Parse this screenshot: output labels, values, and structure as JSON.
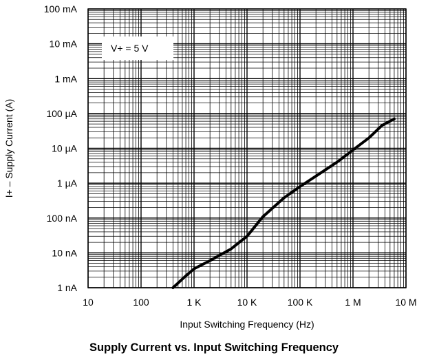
{
  "chart_data": {
    "type": "line",
    "title": "Supply Current vs. Input Switching Frequency",
    "xlabel": "Input Switching Frequency (Hz)",
    "ylabel": "I+ – Supply Current (A)",
    "x_scale": "log",
    "y_scale": "log",
    "xlim": [
      10,
      10000000
    ],
    "ylim": [
      1e-09,
      0.1
    ],
    "x_ticks": [
      {
        "value": 10,
        "label": "10"
      },
      {
        "value": 100,
        "label": "100"
      },
      {
        "value": 1000,
        "label": "1 K"
      },
      {
        "value": 10000,
        "label": "10 K"
      },
      {
        "value": 100000,
        "label": "100 K"
      },
      {
        "value": 1000000,
        "label": "1 M"
      },
      {
        "value": 10000000,
        "label": "10 M"
      }
    ],
    "y_ticks": [
      {
        "value": 1e-09,
        "label": "1 nA"
      },
      {
        "value": 1e-08,
        "label": "10 nA"
      },
      {
        "value": 1e-07,
        "label": "100 nA"
      },
      {
        "value": 1e-06,
        "label": "1 µA"
      },
      {
        "value": 1e-05,
        "label": "10 µA"
      },
      {
        "value": 0.0001,
        "label": "100 µA"
      },
      {
        "value": 0.001,
        "label": "1 mA"
      },
      {
        "value": 0.01,
        "label": "10 mA"
      },
      {
        "value": 0.1,
        "label": "100 mA"
      }
    ],
    "grid": true,
    "annotation": "V+ = 5 V",
    "series": [
      {
        "x": [
          400,
          700,
          1000,
          2000,
          5000,
          10000,
          20000,
          50000,
          100000,
          200000,
          500000,
          1000000,
          2000000,
          3500000,
          6000000
        ],
        "y": [
          1e-09,
          2.2e-09,
          3.5e-09,
          6e-09,
          1.3e-08,
          3e-08,
          1.1e-07,
          3.8e-07,
          8e-07,
          1.6e-06,
          4e-06,
          9e-06,
          2e-05,
          4.5e-05,
          7e-05
        ]
      }
    ]
  }
}
